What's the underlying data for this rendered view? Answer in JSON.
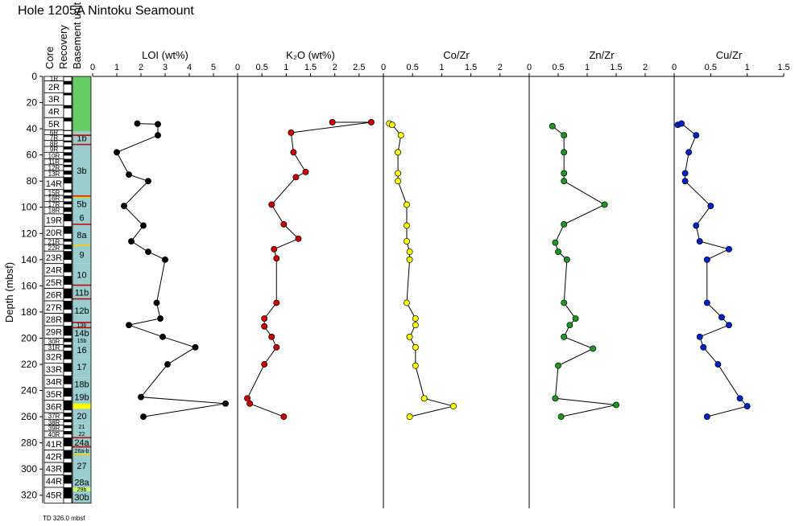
{
  "title": "Hole 1205A Nintoku Seamount",
  "footnote": "TD 326.0 mbsf",
  "y_axis": {
    "label": "Depth (mbsf)",
    "ticks": [
      0,
      20,
      40,
      60,
      80,
      100,
      120,
      140,
      160,
      180,
      200,
      220,
      240,
      260,
      280,
      300,
      320
    ],
    "range": [
      0,
      330
    ]
  },
  "column_headers": {
    "core": "Core",
    "recovery": "Recovery",
    "basement": "Basement unit"
  },
  "cores": [
    {
      "name": "1R",
      "top": 0,
      "bottom": 3.5
    },
    {
      "name": "2R",
      "top": 3.5,
      "bottom": 12.5
    },
    {
      "name": "3R",
      "top": 12.5,
      "bottom": 22
    },
    {
      "name": "4R",
      "top": 22,
      "bottom": 31.5
    },
    {
      "name": "5R",
      "top": 31.5,
      "bottom": 41
    },
    {
      "name": "6R",
      "top": 41,
      "bottom": 44.5
    },
    {
      "name": "7R",
      "top": 44.5,
      "bottom": 49
    },
    {
      "name": "8R",
      "top": 49,
      "bottom": 53.5
    },
    {
      "name": "9R",
      "top": 53.5,
      "bottom": 58
    },
    {
      "name": "10R",
      "top": 58,
      "bottom": 63
    },
    {
      "name": "11R",
      "top": 63,
      "bottom": 67.5
    },
    {
      "name": "12R",
      "top": 67.5,
      "bottom": 72
    },
    {
      "name": "13R",
      "top": 72,
      "bottom": 77
    },
    {
      "name": "14R",
      "top": 77,
      "bottom": 86.5
    },
    {
      "name": "15R",
      "top": 86.5,
      "bottom": 91
    },
    {
      "name": "16R",
      "top": 91,
      "bottom": 95.5
    },
    {
      "name": "17R",
      "top": 95.5,
      "bottom": 100
    },
    {
      "name": "18R",
      "top": 100,
      "bottom": 105
    },
    {
      "name": "19R",
      "top": 105,
      "bottom": 114.5
    },
    {
      "name": "20R",
      "top": 114.5,
      "bottom": 124
    },
    {
      "name": "21R",
      "top": 124,
      "bottom": 128.5
    },
    {
      "name": "22R",
      "top": 128.5,
      "bottom": 133.5
    },
    {
      "name": "23R",
      "top": 133.5,
      "bottom": 143
    },
    {
      "name": "24R",
      "top": 143,
      "bottom": 152.5
    },
    {
      "name": "25R",
      "top": 152.5,
      "bottom": 162
    },
    {
      "name": "26R",
      "top": 162,
      "bottom": 171.5
    },
    {
      "name": "27R",
      "top": 171.5,
      "bottom": 181
    },
    {
      "name": "28R",
      "top": 181,
      "bottom": 190.5
    },
    {
      "name": "29R",
      "top": 190.5,
      "bottom": 200
    },
    {
      "name": "30R",
      "top": 200,
      "bottom": 205
    },
    {
      "name": "31R",
      "top": 205,
      "bottom": 209.5
    },
    {
      "name": "32R",
      "top": 209.5,
      "bottom": 219
    },
    {
      "name": "33R",
      "top": 219,
      "bottom": 228.5
    },
    {
      "name": "34R",
      "top": 228.5,
      "bottom": 238
    },
    {
      "name": "35R",
      "top": 238,
      "bottom": 247.5
    },
    {
      "name": "36R",
      "top": 247.5,
      "bottom": 257
    },
    {
      "name": "37R",
      "top": 257,
      "bottom": 262
    },
    {
      "name": "38R",
      "top": 262,
      "bottom": 266.5
    },
    {
      "name": "39R",
      "top": 266.5,
      "bottom": 271
    },
    {
      "name": "40R",
      "top": 271,
      "bottom": 276
    },
    {
      "name": "41R",
      "top": 276,
      "bottom": 285.5
    },
    {
      "name": "42R",
      "top": 285.5,
      "bottom": 295
    },
    {
      "name": "43R",
      "top": 295,
      "bottom": 304.5
    },
    {
      "name": "44R",
      "top": 304.5,
      "bottom": 314
    },
    {
      "name": "45R",
      "top": 314,
      "bottom": 326
    }
  ],
  "recovery_fraction": [
    0.1,
    0.3,
    0.2,
    0.25,
    0.3,
    0.2,
    0.4,
    0.3,
    0.5,
    0.5,
    0.6,
    0.4,
    0.6,
    0.5,
    0.5,
    0.5,
    0.5,
    0.7,
    0.6,
    0.6,
    0.5,
    0.7,
    0.7,
    0.7,
    0.7,
    0.8,
    0.7,
    0.7,
    0.8,
    0.6,
    0.5,
    0.7,
    0.7,
    0.7,
    0.7,
    0.8,
    0.6,
    0.5,
    0.5,
    0.5,
    0.7,
    0.7,
    0.8,
    0.7,
    0.7
  ],
  "units": [
    {
      "label": "",
      "top": 0,
      "bottom": 42,
      "color": "#66cc66"
    },
    {
      "label": "1b",
      "top": 42,
      "bottom": 52,
      "color": "#99cccc"
    },
    {
      "label": "3b",
      "top": 52,
      "bottom": 92,
      "color": "#99cccc"
    },
    {
      "label": "5b",
      "top": 92,
      "bottom": 103,
      "color": "#99cccc"
    },
    {
      "label": "6",
      "top": 103,
      "bottom": 113,
      "color": "#99cccc"
    },
    {
      "label": "8a",
      "top": 113,
      "bottom": 129,
      "color": "#99cccc"
    },
    {
      "label": "9",
      "top": 129,
      "bottom": 143,
      "color": "#99cccc"
    },
    {
      "label": "10",
      "top": 143,
      "bottom": 160,
      "color": "#99cccc"
    },
    {
      "label": "11b",
      "top": 160,
      "bottom": 170,
      "color": "#99cccc"
    },
    {
      "label": "12b",
      "top": 170,
      "bottom": 188,
      "color": "#99cccc"
    },
    {
      "label": "13b",
      "top": 188,
      "bottom": 192,
      "color": "#99cccc"
    },
    {
      "label": "14b",
      "top": 192,
      "bottom": 200,
      "color": "#99cccc"
    },
    {
      "label": "15b",
      "top": 200,
      "bottom": 204,
      "color": "#99cccc"
    },
    {
      "label": "16",
      "top": 204,
      "bottom": 214,
      "color": "#99cccc"
    },
    {
      "label": "17",
      "top": 214,
      "bottom": 230,
      "color": "#99cccc"
    },
    {
      "label": "18b",
      "top": 230,
      "bottom": 240,
      "color": "#99cccc"
    },
    {
      "label": "19b",
      "top": 240,
      "bottom": 250,
      "color": "#99cccc"
    },
    {
      "label": "",
      "top": 250,
      "bottom": 254,
      "color": "#ffff00"
    },
    {
      "label": "20",
      "top": 254,
      "bottom": 265,
      "color": "#99cccc"
    },
    {
      "label": "21",
      "top": 265,
      "bottom": 270,
      "color": "#99cccc"
    },
    {
      "label": "22",
      "top": 270,
      "bottom": 276,
      "color": "#99cccc"
    },
    {
      "label": "24a",
      "top": 276,
      "bottom": 283,
      "color": "#99cccc"
    },
    {
      "label": "26a-b",
      "top": 283,
      "bottom": 289,
      "color": "#99cccc"
    },
    {
      "label": "27",
      "top": 289,
      "bottom": 306,
      "color": "#99cccc"
    },
    {
      "label": "28a",
      "top": 306,
      "bottom": 314,
      "color": "#99cccc"
    },
    {
      "label": "29b",
      "top": 314,
      "bottom": 317,
      "color": "#ccff66"
    },
    {
      "label": "30b",
      "top": 317,
      "bottom": 326,
      "color": "#99cccc"
    }
  ],
  "unit_boundaries": [
    {
      "depth": 45,
      "color": "#cc0000"
    },
    {
      "depth": 52,
      "color": "#cc0000"
    },
    {
      "depth": 91.5,
      "color": "#cc0000"
    },
    {
      "depth": 92.3,
      "color": "#ffcc00"
    },
    {
      "depth": 113,
      "color": "#cc0000"
    },
    {
      "depth": 129,
      "color": "#ffcc00"
    },
    {
      "depth": 159.5,
      "color": "#cc0000"
    },
    {
      "depth": 170,
      "color": "#cc0000"
    },
    {
      "depth": 188,
      "color": "#cc0000"
    },
    {
      "depth": 192,
      "color": "#cc0000"
    },
    {
      "depth": 276,
      "color": "#cc0000"
    },
    {
      "depth": 283,
      "color": "#cc0000"
    },
    {
      "depth": 289,
      "color": "#ffcc00"
    }
  ],
  "chart_data": [
    {
      "type": "scatter",
      "id": "loi",
      "title": "LOI (wt%)",
      "color": "#000000",
      "xlim": [
        0,
        6
      ],
      "xticks": [
        "0",
        "1",
        "2",
        "3",
        "4",
        "5",
        "6"
      ],
      "points": [
        {
          "x": 1.85,
          "y": 36
        },
        {
          "x": 2.7,
          "y": 36.5
        },
        {
          "x": 2.7,
          "y": 45
        },
        {
          "x": 1.0,
          "y": 58
        },
        {
          "x": 1.5,
          "y": 75
        },
        {
          "x": 2.3,
          "y": 80
        },
        {
          "x": 1.3,
          "y": 99
        },
        {
          "x": 2.1,
          "y": 114
        },
        {
          "x": 1.6,
          "y": 126
        },
        {
          "x": 2.3,
          "y": 134
        },
        {
          "x": 3.0,
          "y": 140
        },
        {
          "x": 2.65,
          "y": 173
        },
        {
          "x": 2.8,
          "y": 185
        },
        {
          "x": 1.5,
          "y": 190
        },
        {
          "x": 2.9,
          "y": 199
        },
        {
          "x": 4.25,
          "y": 207
        },
        {
          "x": 3.1,
          "y": 220
        },
        {
          "x": 2.0,
          "y": 245
        },
        {
          "x": 5.5,
          "y": 250
        },
        {
          "x": 2.1,
          "y": 260
        }
      ]
    },
    {
      "type": "scatter",
      "id": "k2o",
      "title": "K₂O (wt%)",
      "color": "#cc0000",
      "xlim": [
        0,
        3
      ],
      "xticks": [
        "0",
        "0.5",
        "1",
        "1.5",
        "2",
        "2.5",
        "3"
      ],
      "points": [
        {
          "x": 1.95,
          "y": 35
        },
        {
          "x": 2.75,
          "y": 35
        },
        {
          "x": 1.1,
          "y": 43
        },
        {
          "x": 1.15,
          "y": 58
        },
        {
          "x": 1.4,
          "y": 73
        },
        {
          "x": 1.2,
          "y": 77
        },
        {
          "x": 0.7,
          "y": 98
        },
        {
          "x": 0.95,
          "y": 113
        },
        {
          "x": 1.25,
          "y": 124
        },
        {
          "x": 0.75,
          "y": 132
        },
        {
          "x": 0.8,
          "y": 139
        },
        {
          "x": 0.8,
          "y": 173
        },
        {
          "x": 0.55,
          "y": 185
        },
        {
          "x": 0.55,
          "y": 191
        },
        {
          "x": 0.7,
          "y": 199
        },
        {
          "x": 0.8,
          "y": 207
        },
        {
          "x": 0.55,
          "y": 220
        },
        {
          "x": 0.2,
          "y": 246
        },
        {
          "x": 0.25,
          "y": 250
        },
        {
          "x": 0.95,
          "y": 260
        }
      ]
    },
    {
      "type": "scatter",
      "id": "co-zr",
      "title": "Co/Zr",
      "color": "#ffff00",
      "xlim": [
        0,
        2.5
      ],
      "xticks": [
        "0",
        "0.5",
        "1",
        "1.5",
        "2",
        "2.5"
      ],
      "points": [
        {
          "x": 0.1,
          "y": 36
        },
        {
          "x": 0.15,
          "y": 37
        },
        {
          "x": 0.3,
          "y": 45
        },
        {
          "x": 0.25,
          "y": 58
        },
        {
          "x": 0.25,
          "y": 74
        },
        {
          "x": 0.25,
          "y": 80
        },
        {
          "x": 0.4,
          "y": 98
        },
        {
          "x": 0.4,
          "y": 114
        },
        {
          "x": 0.4,
          "y": 126
        },
        {
          "x": 0.45,
          "y": 134
        },
        {
          "x": 0.45,
          "y": 140
        },
        {
          "x": 0.4,
          "y": 173
        },
        {
          "x": 0.55,
          "y": 185
        },
        {
          "x": 0.55,
          "y": 190
        },
        {
          "x": 0.45,
          "y": 199
        },
        {
          "x": 0.55,
          "y": 207
        },
        {
          "x": 0.55,
          "y": 221
        },
        {
          "x": 0.7,
          "y": 246
        },
        {
          "x": 1.2,
          "y": 252
        },
        {
          "x": 0.45,
          "y": 260
        }
      ]
    },
    {
      "type": "scatter",
      "id": "zn-zr",
      "title": "Zn/Zr",
      "color": "#1a9922",
      "xlim": [
        0,
        2.5
      ],
      "xticks": [
        "0",
        "0.5",
        "1",
        "1.5",
        "2",
        "2.5"
      ],
      "points": [
        {
          "x": 0.4,
          "y": 38
        },
        {
          "x": 0.6,
          "y": 45
        },
        {
          "x": 0.6,
          "y": 58
        },
        {
          "x": 0.6,
          "y": 74
        },
        {
          "x": 0.6,
          "y": 80
        },
        {
          "x": 1.3,
          "y": 98
        },
        {
          "x": 0.6,
          "y": 113
        },
        {
          "x": 0.45,
          "y": 127
        },
        {
          "x": 0.5,
          "y": 134
        },
        {
          "x": 0.65,
          "y": 140
        },
        {
          "x": 0.6,
          "y": 173
        },
        {
          "x": 0.8,
          "y": 185
        },
        {
          "x": 0.7,
          "y": 190
        },
        {
          "x": 0.6,
          "y": 199
        },
        {
          "x": 1.1,
          "y": 208
        },
        {
          "x": 0.5,
          "y": 221
        },
        {
          "x": 0.45,
          "y": 246
        },
        {
          "x": 1.5,
          "y": 251
        },
        {
          "x": 0.55,
          "y": 260
        }
      ]
    },
    {
      "type": "scatter",
      "id": "cu-zr",
      "title": "Cu/Zr",
      "color": "#0022cc",
      "xlim": [
        0,
        1.5
      ],
      "xticks": [
        "0",
        "0.5",
        "1",
        "1.5"
      ],
      "points": [
        {
          "x": 0.05,
          "y": 37
        },
        {
          "x": 0.1,
          "y": 36
        },
        {
          "x": 0.3,
          "y": 45
        },
        {
          "x": 0.2,
          "y": 58
        },
        {
          "x": 0.15,
          "y": 74
        },
        {
          "x": 0.15,
          "y": 80
        },
        {
          "x": 0.5,
          "y": 99
        },
        {
          "x": 0.3,
          "y": 114
        },
        {
          "x": 0.35,
          "y": 126
        },
        {
          "x": 0.75,
          "y": 132
        },
        {
          "x": 0.45,
          "y": 140
        },
        {
          "x": 0.45,
          "y": 173
        },
        {
          "x": 0.65,
          "y": 184
        },
        {
          "x": 0.75,
          "y": 190
        },
        {
          "x": 0.35,
          "y": 199
        },
        {
          "x": 0.4,
          "y": 207
        },
        {
          "x": 0.6,
          "y": 220
        },
        {
          "x": 0.9,
          "y": 246
        },
        {
          "x": 1.0,
          "y": 252
        },
        {
          "x": 0.45,
          "y": 260
        }
      ]
    }
  ]
}
